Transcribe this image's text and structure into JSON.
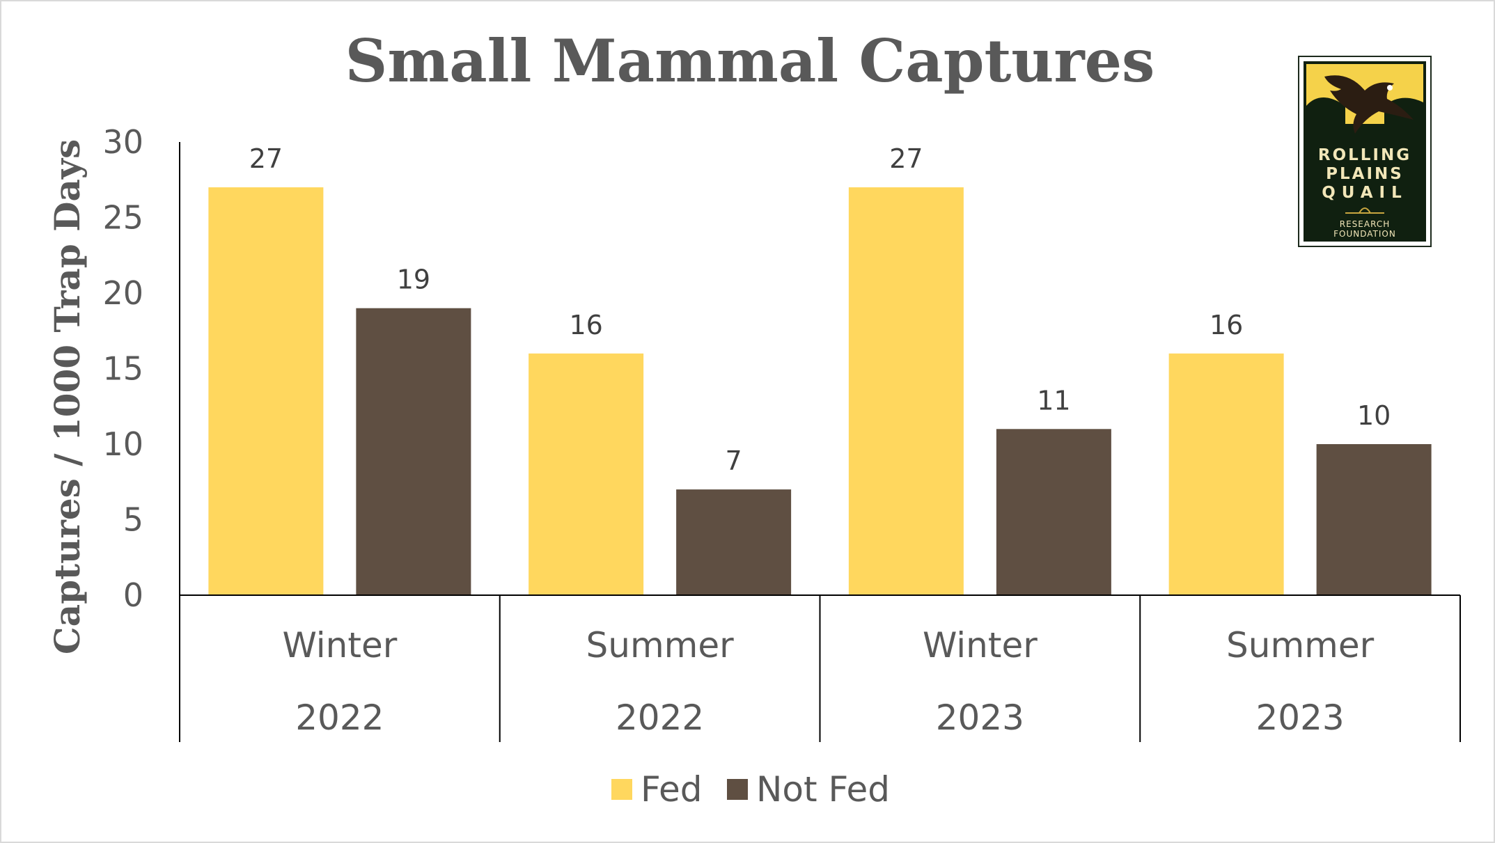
{
  "chart_data": {
    "type": "bar",
    "title": "Small Mammal Captures",
    "ylabel": "Captures / 1000 Trap Days",
    "ylim": [
      0,
      30
    ],
    "yticks": [
      0,
      5,
      10,
      15,
      20,
      25,
      30
    ],
    "categories": [
      {
        "season": "Winter",
        "year": "2022"
      },
      {
        "season": "Summer",
        "year": "2022"
      },
      {
        "season": "Winter",
        "year": "2023"
      },
      {
        "season": "Summer",
        "year": "2023"
      }
    ],
    "series": [
      {
        "name": "Fed",
        "color": "#ffd75e",
        "values": [
          27,
          16,
          27,
          16
        ]
      },
      {
        "name": "Not Fed",
        "color": "#5f4f42",
        "values": [
          19,
          7,
          11,
          10
        ]
      }
    ],
    "grid": false,
    "legend_position": "bottom"
  },
  "logo": {
    "line1": "ROLLING",
    "line2": "PLAINS",
    "line3": "QUAIL",
    "line4": "RESEARCH",
    "line5": "FOUNDATION",
    "icon": "quail-icon"
  }
}
